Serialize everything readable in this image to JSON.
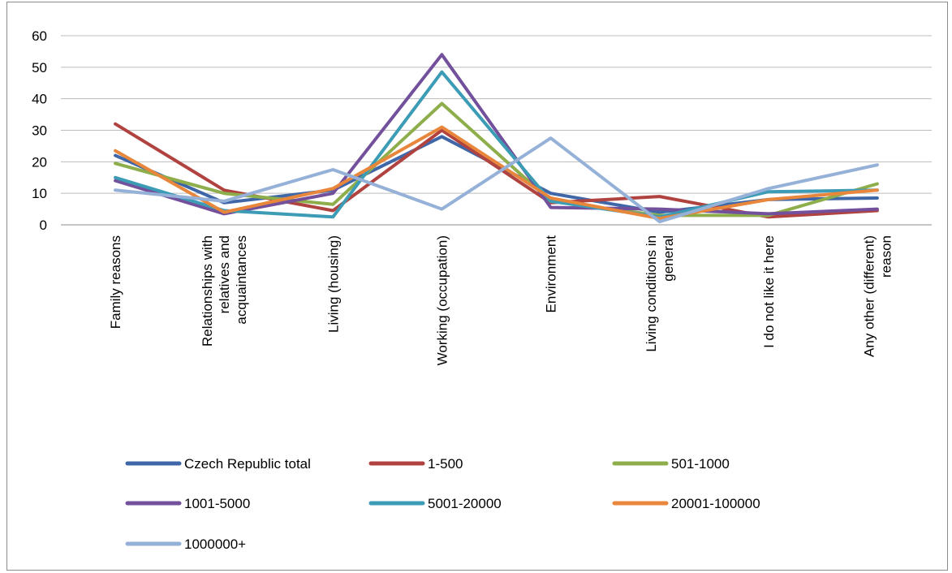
{
  "chart_data": {
    "type": "line",
    "title": "",
    "xlabel": "",
    "ylabel": "",
    "ylim": [
      0,
      60
    ],
    "yticks": [
      0,
      10,
      20,
      30,
      40,
      50,
      60
    ],
    "grid": "horizontal",
    "legend_position": "bottom",
    "categories": [
      [
        "Family reasons"
      ],
      [
        "Relationships with",
        "relatives and",
        "acquaintances"
      ],
      [
        "Living (housing)"
      ],
      [
        "Working (occupation)"
      ],
      [
        "Environment"
      ],
      [
        "Living conditions in",
        "general"
      ],
      [
        "I do not like it here"
      ],
      [
        "Any other (different)",
        "reason"
      ]
    ],
    "series": [
      {
        "name": "Czech Republic total",
        "color": "#3f67a8",
        "values": [
          22,
          7,
          11,
          28,
          10,
          4,
          8,
          8.5
        ]
      },
      {
        "name": "1-500",
        "color": "#b04340",
        "values": [
          32,
          11,
          4.5,
          30,
          7,
          9,
          2.5,
          4.5
        ]
      },
      {
        "name": "501-1000",
        "color": "#8ead4b",
        "values": [
          19.5,
          10,
          6.5,
          38.5,
          7.5,
          3,
          3,
          13
        ]
      },
      {
        "name": "1001-5000",
        "color": "#72509b",
        "values": [
          14,
          3.5,
          10,
          54,
          5.5,
          5,
          3.5,
          5
        ]
      },
      {
        "name": "5001-20000",
        "color": "#3c9bb5",
        "values": [
          15,
          4.5,
          2.5,
          48.5,
          7.5,
          2.5,
          10.5,
          11
        ]
      },
      {
        "name": "20001-100000",
        "color": "#e8873c",
        "values": [
          23.5,
          4,
          11.5,
          31,
          8.5,
          2,
          8,
          11
        ]
      },
      {
        "name": "1000000+",
        "color": "#95b1d8",
        "values": [
          11,
          7.5,
          17.5,
          5,
          27.5,
          1,
          11.5,
          19
        ]
      }
    ]
  }
}
